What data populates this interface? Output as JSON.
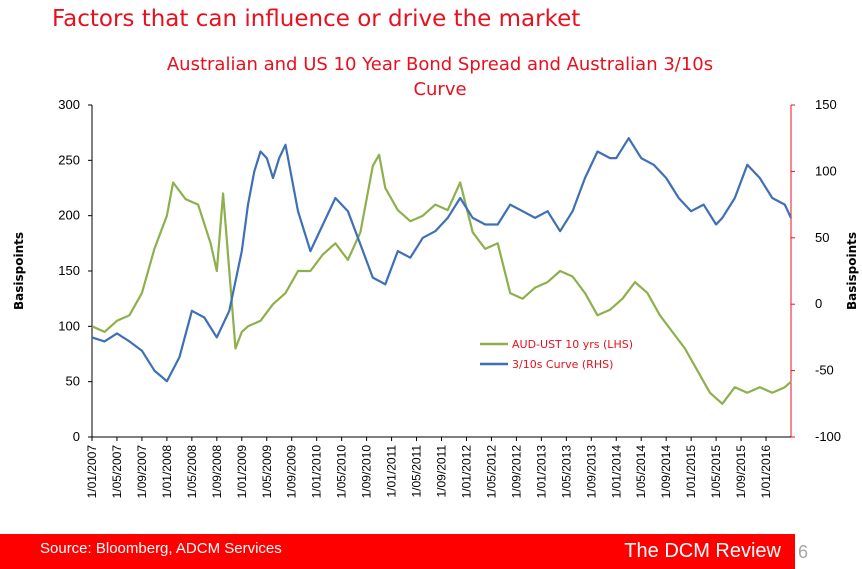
{
  "slide": {
    "title": "Factors that can influence or drive the market",
    "source": "Source: Bloomberg, ADCM Services",
    "brand": "The DCM Review",
    "page_number": "6"
  },
  "colors": {
    "title": "#e8101e",
    "left_series": "#8db04c",
    "right_series": "#3f6fb5",
    "right_axis": "#e8101e",
    "footer": "#ff0000"
  },
  "chart_data": {
    "type": "line",
    "title_lines": [
      "Australian and US 10 Year Bond Spread and  Australian 3/10s",
      "Curve"
    ],
    "ylabel_left": "Basispoints",
    "ylabel_right": "Basispoints",
    "ylim_left": [
      0,
      300
    ],
    "yticks_left": [
      "0",
      "50",
      "100",
      "150",
      "200",
      "250",
      "300"
    ],
    "ylim_right": [
      -100,
      150
    ],
    "yticks_right": [
      "-100",
      "-50",
      "0",
      "50",
      "100",
      "150"
    ],
    "xlim": [
      "2007-01-01",
      "2016-05-01"
    ],
    "xticks": [
      "1/01/2007",
      "1/05/2007",
      "1/09/2007",
      "1/01/2008",
      "1/05/2008",
      "1/09/2008",
      "1/01/2009",
      "1/05/2009",
      "1/09/2009",
      "1/01/2010",
      "1/05/2010",
      "1/09/2010",
      "1/01/2011",
      "1/05/2011",
      "1/09/2011",
      "1/01/2012",
      "1/05/2012",
      "1/09/2012",
      "1/01/2013",
      "1/05/2013",
      "1/09/2013",
      "1/01/2014",
      "1/05/2014",
      "1/09/2014",
      "1/01/2015",
      "1/05/2015",
      "1/09/2015",
      "1/01/2016"
    ],
    "grid": false,
    "legend_position": "center-right",
    "series": [
      {
        "name": "AUD-UST 10 yrs (LHS)",
        "axis": "left",
        "x": [
          "2007-01",
          "2007-03",
          "2007-05",
          "2007-07",
          "2007-09",
          "2007-11",
          "2008-01",
          "2008-02",
          "2008-04",
          "2008-06",
          "2008-08",
          "2008-09",
          "2008-10",
          "2008-12",
          "2009-01",
          "2009-02",
          "2009-04",
          "2009-06",
          "2009-08",
          "2009-10",
          "2009-12",
          "2010-02",
          "2010-04",
          "2010-06",
          "2010-08",
          "2010-10",
          "2010-11",
          "2010-12",
          "2011-02",
          "2011-04",
          "2011-06",
          "2011-08",
          "2011-10",
          "2011-12",
          "2012-02",
          "2012-04",
          "2012-06",
          "2012-08",
          "2012-10",
          "2012-12",
          "2013-02",
          "2013-04",
          "2013-06",
          "2013-08",
          "2013-10",
          "2013-12",
          "2014-02",
          "2014-04",
          "2014-06",
          "2014-08",
          "2014-10",
          "2014-12",
          "2015-02",
          "2015-04",
          "2015-06",
          "2015-08",
          "2015-10",
          "2015-12",
          "2016-02",
          "2016-04",
          "2016-05"
        ],
        "values": [
          100,
          95,
          105,
          110,
          130,
          170,
          200,
          230,
          215,
          210,
          175,
          150,
          220,
          80,
          95,
          100,
          105,
          120,
          130,
          150,
          150,
          165,
          175,
          160,
          185,
          245,
          255,
          225,
          205,
          195,
          200,
          210,
          205,
          230,
          185,
          170,
          175,
          130,
          125,
          135,
          140,
          150,
          145,
          130,
          110,
          115,
          125,
          140,
          130,
          110,
          95,
          80,
          60,
          40,
          30,
          45,
          40,
          45,
          40,
          45,
          50
        ]
      },
      {
        "name": "3/10s Curve (RHS)",
        "axis": "right",
        "x": [
          "2007-01",
          "2007-03",
          "2007-05",
          "2007-07",
          "2007-09",
          "2007-11",
          "2008-01",
          "2008-03",
          "2008-05",
          "2008-07",
          "2008-09",
          "2008-11",
          "2009-01",
          "2009-02",
          "2009-03",
          "2009-04",
          "2009-05",
          "2009-06",
          "2009-07",
          "2009-08",
          "2009-10",
          "2009-12",
          "2010-02",
          "2010-04",
          "2010-06",
          "2010-08",
          "2010-10",
          "2010-12",
          "2011-02",
          "2011-04",
          "2011-06",
          "2011-08",
          "2011-10",
          "2011-12",
          "2012-02",
          "2012-04",
          "2012-06",
          "2012-08",
          "2012-10",
          "2012-12",
          "2013-02",
          "2013-04",
          "2013-06",
          "2013-08",
          "2013-10",
          "2013-12",
          "2014-01",
          "2014-03",
          "2014-05",
          "2014-07",
          "2014-09",
          "2014-11",
          "2015-01",
          "2015-03",
          "2015-05",
          "2015-06",
          "2015-08",
          "2015-10",
          "2015-12",
          "2016-02",
          "2016-04",
          "2016-05"
        ],
        "values": [
          -25,
          -28,
          -22,
          -28,
          -35,
          -50,
          -58,
          -40,
          -5,
          -10,
          -25,
          -5,
          40,
          75,
          100,
          115,
          110,
          95,
          110,
          120,
          70,
          40,
          60,
          80,
          70,
          45,
          20,
          15,
          40,
          35,
          50,
          55,
          65,
          80,
          65,
          60,
          60,
          75,
          70,
          65,
          70,
          55,
          70,
          95,
          115,
          110,
          110,
          125,
          110,
          105,
          95,
          80,
          70,
          75,
          60,
          65,
          80,
          105,
          95,
          80,
          75,
          65
        ]
      }
    ]
  }
}
